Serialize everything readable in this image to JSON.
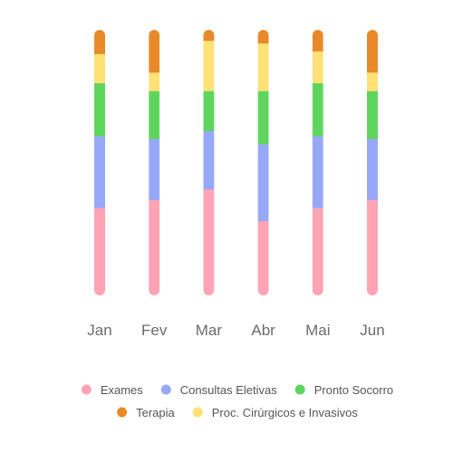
{
  "chart_data": {
    "type": "bar",
    "stacked": true,
    "orientation": "vertical",
    "categories": [
      "Jan",
      "Fev",
      "Mar",
      "Abr",
      "Mai",
      "Jun"
    ],
    "series": [
      {
        "name": "Exames",
        "color": "#ffa3b5",
        "values": [
          33,
          36,
          40,
          28,
          33,
          36
        ]
      },
      {
        "name": "Consultas Eletivas",
        "color": "#98a8f8",
        "values": [
          27,
          23,
          22,
          29,
          27,
          23
        ]
      },
      {
        "name": "Pronto Socorro",
        "color": "#5ed65e",
        "values": [
          20,
          18,
          15,
          20,
          20,
          18
        ]
      },
      {
        "name": "Proc. Cirúrgicos e Invasivos",
        "color": "#ffe176",
        "values": [
          11,
          7,
          19,
          18,
          12,
          7
        ]
      },
      {
        "name": "Terapia",
        "color": "#e88a2a",
        "values": [
          9,
          16,
          4,
          7,
          9,
          16
        ]
      }
    ],
    "ylim": [
      0,
      100
    ],
    "grid": false,
    "legend": {
      "position": "bottom"
    },
    "legend_order": [
      "Exames",
      "Consultas Eletivas",
      "Pronto Socorro",
      "Terapia",
      "Proc. Cirúrgicos e Invasivos"
    ]
  }
}
